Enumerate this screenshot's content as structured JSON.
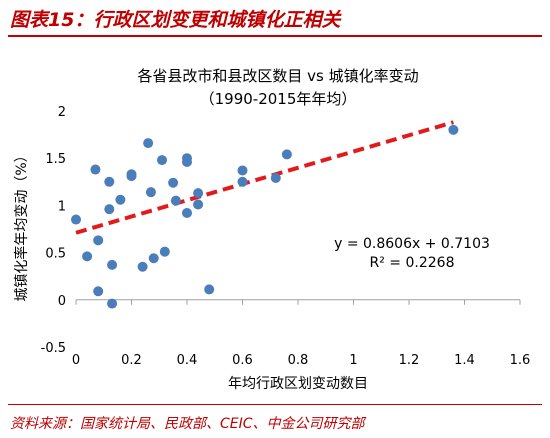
{
  "figure": {
    "label": "图表15：行政区划变更和城镇化正相关",
    "source": "资料来源：国家统计局、民政部、CEIC、中金公司研究部"
  },
  "chart_data": {
    "type": "scatter",
    "title": "各省县改市和县改区数目 vs 城镇化率变动",
    "subtitle": "（1990-2015年年均）",
    "xlabel": "年均行政区划变动数目",
    "ylabel": "城镇化率年均变动（%）",
    "xlim": [
      0,
      1.6
    ],
    "ylim": [
      -0.5,
      2
    ],
    "x_ticks": [
      "0",
      "0.2",
      "0.4",
      "0.6",
      "0.8",
      "1",
      "1.2",
      "1.4",
      "1.6"
    ],
    "y_ticks": [
      "-0.5",
      "0",
      "0.5",
      "1",
      "1.5",
      "2"
    ],
    "grid": false,
    "legend": "none",
    "point_color": "#4a7ebb",
    "trendline_color": "#e31a1c",
    "trendline": {
      "slope": 0.8606,
      "intercept": 0.7103,
      "equation": "y = 0.8606x + 0.7103",
      "r2": "R² = 0.2268"
    },
    "points": [
      {
        "x": 0.0,
        "y": 0.85
      },
      {
        "x": 0.04,
        "y": 0.46
      },
      {
        "x": 0.07,
        "y": 1.38
      },
      {
        "x": 0.08,
        "y": 0.63
      },
      {
        "x": 0.08,
        "y": 0.09
      },
      {
        "x": 0.12,
        "y": 1.25
      },
      {
        "x": 0.12,
        "y": 0.96
      },
      {
        "x": 0.13,
        "y": 0.37
      },
      {
        "x": 0.13,
        "y": -0.04
      },
      {
        "x": 0.16,
        "y": 1.06
      },
      {
        "x": 0.2,
        "y": 1.33
      },
      {
        "x": 0.2,
        "y": 1.31
      },
      {
        "x": 0.24,
        "y": 0.35
      },
      {
        "x": 0.26,
        "y": 1.66
      },
      {
        "x": 0.27,
        "y": 1.14
      },
      {
        "x": 0.28,
        "y": 0.44
      },
      {
        "x": 0.31,
        "y": 1.48
      },
      {
        "x": 0.32,
        "y": 0.51
      },
      {
        "x": 0.35,
        "y": 1.24
      },
      {
        "x": 0.36,
        "y": 1.05
      },
      {
        "x": 0.4,
        "y": 1.5
      },
      {
        "x": 0.4,
        "y": 1.46
      },
      {
        "x": 0.4,
        "y": 0.92
      },
      {
        "x": 0.44,
        "y": 1.13
      },
      {
        "x": 0.44,
        "y": 1.01
      },
      {
        "x": 0.48,
        "y": 0.11
      },
      {
        "x": 0.6,
        "y": 1.37
      },
      {
        "x": 0.6,
        "y": 1.25
      },
      {
        "x": 0.72,
        "y": 1.29
      },
      {
        "x": 0.76,
        "y": 1.54
      },
      {
        "x": 1.36,
        "y": 1.8
      }
    ]
  }
}
